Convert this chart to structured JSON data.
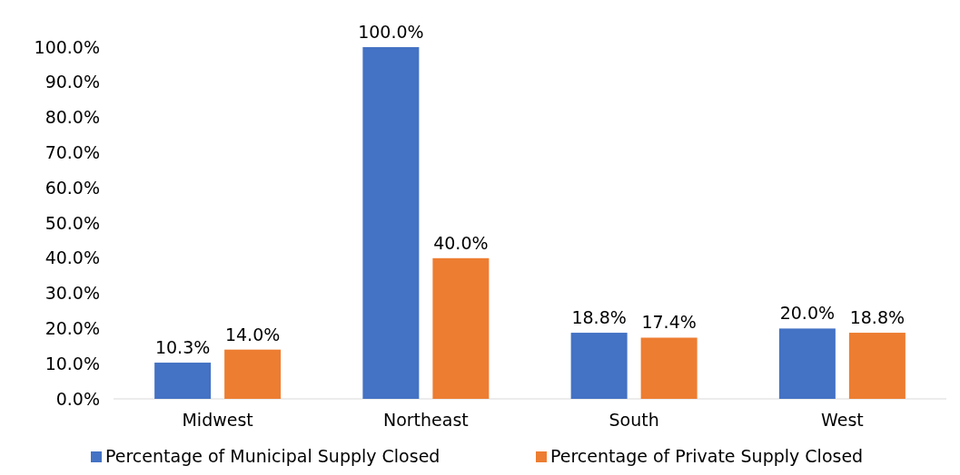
{
  "chart_data": {
    "type": "bar",
    "categories": [
      "Midwest",
      "Northeast",
      "South",
      "West"
    ],
    "series": [
      {
        "name": "Percentage of Municipal Supply Closed",
        "color": "#4472c4",
        "values": [
          10.3,
          100.0,
          18.8,
          20.0
        ],
        "value_labels": [
          "10.3%",
          "100.0%",
          "18.8%",
          "20.0%"
        ]
      },
      {
        "name": "Percentage of Private Supply Closed",
        "color": "#ed7d31",
        "values": [
          14.0,
          40.0,
          17.4,
          18.8
        ],
        "value_labels": [
          "14.0%",
          "40.0%",
          "17.4%",
          "18.8%"
        ]
      }
    ],
    "ylim": [
      0,
      100
    ],
    "yticks": [
      {
        "value": 0,
        "label": "0.0%"
      },
      {
        "value": 10,
        "label": "10.0%"
      },
      {
        "value": 20,
        "label": "20.0%"
      },
      {
        "value": 30,
        "label": "30.0%"
      },
      {
        "value": 40,
        "label": "40.0%"
      },
      {
        "value": 50,
        "label": "50.0%"
      },
      {
        "value": 60,
        "label": "60.0%"
      },
      {
        "value": 70,
        "label": "70.0%"
      },
      {
        "value": 80,
        "label": "80.0%"
      },
      {
        "value": 90,
        "label": "90.0%"
      },
      {
        "value": 100,
        "label": "100.0%"
      }
    ],
    "grid": false,
    "legend": "bottom"
  }
}
